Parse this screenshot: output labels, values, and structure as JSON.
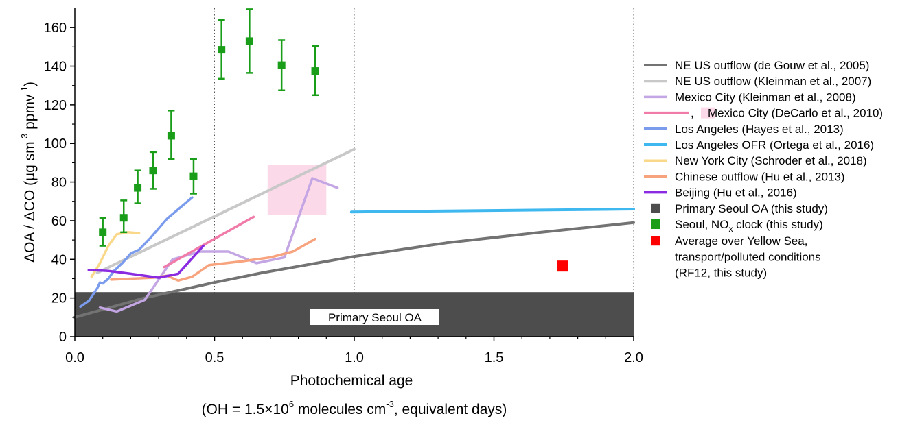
{
  "chart_data": {
    "type": "line",
    "xlabel": "Photochemical age",
    "xlabel_sub": {
      "prefix": "(OH = 1.5×10",
      "exp": "6",
      "mid": " molecules cm",
      "exp2": "-3",
      "suffix": ", equivalent days)"
    },
    "ylabel": {
      "main": "ΔOA / ΔCO (µg sm",
      "exp1": "-3",
      "mid": " ppmv",
      "exp2": "-1",
      "end": ")"
    },
    "xlim": [
      0,
      2.0
    ],
    "ylim": [
      0,
      170
    ],
    "x_ticks": [
      "0.0",
      "0.5",
      "1.0",
      "1.5",
      "2.0"
    ],
    "y_ticks": [
      "0",
      "20",
      "40",
      "60",
      "80",
      "100",
      "120",
      "140",
      "160"
    ],
    "vertical_gridlines": [
      0.5,
      1.0,
      1.5,
      2.0
    ],
    "primary_box": {
      "y": [
        0,
        23
      ],
      "color": "#4d4d4d",
      "label": "Primary Seoul OA"
    },
    "mexico_shade": {
      "x": [
        0.69,
        0.9
      ],
      "y": [
        63,
        89
      ],
      "color": "#fcd9e8"
    },
    "series": [
      {
        "name": "NE US outflow (de Gouw et al., 2005)",
        "color": "#737373",
        "width": 4,
        "points": [
          [
            0,
            10
          ],
          [
            0.25,
            20
          ],
          [
            0.5,
            28
          ],
          [
            0.67,
            33
          ],
          [
            1.0,
            41.5
          ],
          [
            1.33,
            48.5
          ],
          [
            1.67,
            54
          ],
          [
            2.0,
            59
          ]
        ]
      },
      {
        "name": "NE US outflow (Kleinman et al., 2007)",
        "color": "#c8c8c8",
        "width": 4,
        "points": [
          [
            0.08,
            33
          ],
          [
            1.0,
            97
          ]
        ]
      },
      {
        "name": "Mexico City (Kleinman et al., 2008)",
        "color": "#c3a6e3",
        "width": 3.5,
        "points": [
          [
            0.09,
            15
          ],
          [
            0.15,
            13
          ],
          [
            0.25,
            19
          ],
          [
            0.35,
            40
          ],
          [
            0.45,
            44
          ],
          [
            0.55,
            44
          ],
          [
            0.65,
            38
          ],
          [
            0.75,
            41
          ],
          [
            0.85,
            82
          ],
          [
            0.94,
            77
          ]
        ]
      },
      {
        "name": "Mexico City (DeCarlo et al., 2010)",
        "color": "#f07aa8",
        "width": 3.5,
        "points": [
          [
            0.32,
            36
          ],
          [
            0.64,
            62
          ]
        ]
      },
      {
        "name": "Los Angeles (Hayes et al., 2013)",
        "color": "#7b9cec",
        "width": 3.5,
        "points": [
          [
            0.02,
            15.5
          ],
          [
            0.05,
            18.5
          ],
          [
            0.08,
            25
          ],
          [
            0.09,
            28
          ],
          [
            0.1,
            27.5
          ],
          [
            0.12,
            30
          ],
          [
            0.14,
            34
          ],
          [
            0.17,
            38
          ],
          [
            0.2,
            43
          ],
          [
            0.23,
            45
          ],
          [
            0.27,
            51
          ],
          [
            0.33,
            61
          ],
          [
            0.42,
            72
          ]
        ]
      },
      {
        "name": "Los Angeles OFR (Ortega et al., 2016)",
        "color": "#3fb8ef",
        "width": 4,
        "points": [
          [
            0.99,
            64.5
          ],
          [
            1.3,
            65
          ],
          [
            2.0,
            66
          ]
        ]
      },
      {
        "name": "New York City (Schroder et al., 2018)",
        "color": "#f9d88a",
        "width": 3.5,
        "points": [
          [
            0.06,
            31
          ],
          [
            0.09,
            38
          ],
          [
            0.12,
            47
          ],
          [
            0.15,
            53
          ],
          [
            0.19,
            54
          ],
          [
            0.23,
            53.5
          ]
        ]
      },
      {
        "name": "Chinese outflow (Hu et al., 2013)",
        "color": "#f7a37e",
        "width": 3.5,
        "points": [
          [
            0.13,
            29.5
          ],
          [
            0.2,
            30
          ],
          [
            0.28,
            30.5
          ],
          [
            0.33,
            31.5
          ],
          [
            0.37,
            29
          ],
          [
            0.42,
            31
          ],
          [
            0.48,
            37
          ],
          [
            0.6,
            39
          ],
          [
            0.7,
            41
          ],
          [
            0.78,
            44
          ],
          [
            0.86,
            50.5
          ]
        ]
      },
      {
        "name": "Beijing (Hu et al., 2016)",
        "color": "#8a2be2",
        "width": 3.5,
        "points": [
          [
            0.05,
            34.5
          ],
          [
            0.12,
            34
          ],
          [
            0.2,
            32.5
          ],
          [
            0.3,
            30.5
          ],
          [
            0.37,
            32.5
          ],
          [
            0.46,
            47
          ]
        ]
      }
    ],
    "seoul_nox_clock": {
      "name_main": "Seoul, NO",
      "name_sub": "x",
      "name_end": " clock (this study)",
      "color": "#1a9e1a",
      "points": [
        {
          "x": 0.1,
          "y": 54,
          "lo": 47,
          "hi": 61.5
        },
        {
          "x": 0.175,
          "y": 61.5,
          "lo": 54,
          "hi": 70.5
        },
        {
          "x": 0.225,
          "y": 77,
          "lo": 69,
          "hi": 86
        },
        {
          "x": 0.28,
          "y": 86,
          "lo": 76.5,
          "hi": 95.5
        },
        {
          "x": 0.345,
          "y": 104,
          "lo": 92,
          "hi": 117
        },
        {
          "x": 0.425,
          "y": 83,
          "lo": 74,
          "hi": 92
        },
        {
          "x": 0.525,
          "y": 148.5,
          "lo": 133.5,
          "hi": 164
        },
        {
          "x": 0.625,
          "y": 153,
          "lo": 136.5,
          "hi": 169.5
        },
        {
          "x": 0.74,
          "y": 140.5,
          "lo": 127.5,
          "hi": 153.5
        },
        {
          "x": 0.86,
          "y": 137.5,
          "lo": 125,
          "hi": 150.5
        }
      ]
    },
    "yellow_sea": {
      "x": 1.745,
      "y": 36.5,
      "color": "#ff0000"
    },
    "legend": {
      "primary": "Primary Seoul OA (this study)",
      "decarlo_prefix": ",",
      "yellow_sea_lines": [
        "Average over Yellow Sea,",
        "transport/polluted conditions",
        "(RF12, this study)"
      ]
    }
  }
}
